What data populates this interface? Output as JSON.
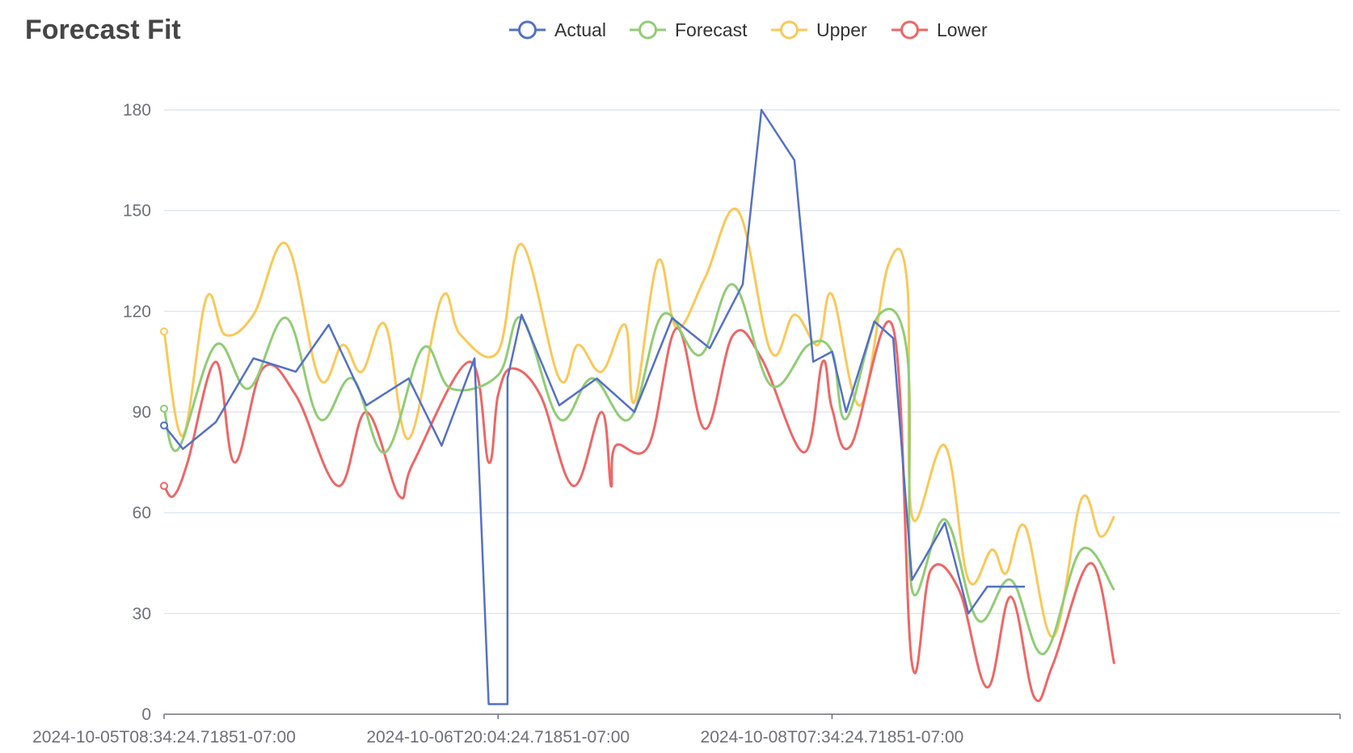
{
  "title": "Forecast Fit",
  "chart_data": {
    "type": "line",
    "title": "Forecast Fit",
    "xlabel": "",
    "ylabel": "",
    "x_start": "2024-10-05T08:34:24.71851-07:00",
    "x_end": "2024-10-10T13:34:24.71851-07:00",
    "x_ticks": [
      "2024-10-05T08:34:24.71851-07:00",
      "2024-10-06T20:04:24.71851-07:00",
      "2024-10-08T07:34:24.71851-07:00"
    ],
    "y_ticks": [
      "0",
      "30",
      "60",
      "90",
      "120",
      "150",
      "180"
    ],
    "ylim": [
      0,
      180
    ],
    "grid": true,
    "legend_position": "top-center",
    "series": [
      {
        "name": "Actual",
        "color": "#5470c6",
        "points": [
          [
            "2024-10-05T08:34",
            86
          ],
          [
            "2024-10-05T10:34",
            79
          ],
          [
            "2024-10-05T14:04",
            87
          ],
          [
            "2024-10-05T18:04",
            106
          ],
          [
            "2024-10-05T22:34",
            102
          ],
          [
            "2024-10-06T02:04",
            116
          ],
          [
            "2024-10-06T06:04",
            92
          ],
          [
            "2024-10-06T10:34",
            100
          ],
          [
            "2024-10-06T14:04",
            80
          ],
          [
            "2024-10-06T17:34",
            106
          ],
          [
            "2024-10-06T19:04",
            3
          ],
          [
            "2024-10-06T20:04",
            3
          ],
          [
            "2024-10-06T21:04",
            3
          ],
          [
            "2024-10-06T21:04",
            100
          ],
          [
            "2024-10-06T22:34",
            119
          ],
          [
            "2024-10-07T02:34",
            92
          ],
          [
            "2024-10-07T06:34",
            100
          ],
          [
            "2024-10-07T10:34",
            90
          ],
          [
            "2024-10-07T14:34",
            118
          ],
          [
            "2024-10-07T18:34",
            109
          ],
          [
            "2024-10-07T22:04",
            128
          ],
          [
            "2024-10-08T00:04",
            180
          ],
          [
            "2024-10-08T03:34",
            165
          ],
          [
            "2024-10-08T04:04",
            150
          ],
          [
            "2024-10-08T05:34",
            105
          ],
          [
            "2024-10-08T07:34",
            108
          ],
          [
            "2024-10-08T09:04",
            90
          ],
          [
            "2024-10-08T12:04",
            117
          ],
          [
            "2024-10-08T14:04",
            112
          ],
          [
            "2024-10-08T16:04",
            40
          ],
          [
            "2024-10-08T19:34",
            57
          ],
          [
            "2024-10-08T22:04",
            30
          ],
          [
            "2024-10-09T00:04",
            38
          ],
          [
            "2024-10-09T04:04",
            38
          ]
        ]
      },
      {
        "name": "Forecast",
        "color": "#91cc75",
        "points": [
          [
            "2024-10-05T08:34",
            91
          ],
          [
            "2024-10-05T10:04",
            79
          ],
          [
            "2024-10-05T14:04",
            110
          ],
          [
            "2024-10-05T17:34",
            97
          ],
          [
            "2024-10-05T21:34",
            118
          ],
          [
            "2024-10-06T01:04",
            88
          ],
          [
            "2024-10-06T04:34",
            100
          ],
          [
            "2024-10-06T08:04",
            78
          ],
          [
            "2024-10-06T12:04",
            109
          ],
          [
            "2024-10-06T15:04",
            97
          ],
          [
            "2024-10-06T20:04",
            101
          ],
          [
            "2024-10-06T22:34",
            118
          ],
          [
            "2024-10-07T02:34",
            88
          ],
          [
            "2024-10-07T06:04",
            100
          ],
          [
            "2024-10-07T10:04",
            88
          ],
          [
            "2024-10-07T13:34",
            119
          ],
          [
            "2024-10-07T17:34",
            107
          ],
          [
            "2024-10-07T21:04",
            128
          ],
          [
            "2024-10-08T01:04",
            98
          ],
          [
            "2024-10-08T05:04",
            110
          ],
          [
            "2024-10-08T07:34",
            108
          ],
          [
            "2024-10-08T09:04",
            88
          ],
          [
            "2024-10-08T12:34",
            119
          ],
          [
            "2024-10-08T15:34",
            107
          ],
          [
            "2024-10-08T16:04",
            37
          ],
          [
            "2024-10-08T19:34",
            58
          ],
          [
            "2024-10-08T23:04",
            28
          ],
          [
            "2024-10-09T02:34",
            40
          ],
          [
            "2024-10-09T06:04",
            18
          ],
          [
            "2024-10-09T10:04",
            49
          ],
          [
            "2024-10-09T13:34",
            37
          ]
        ]
      },
      {
        "name": "Upper",
        "color": "#fac858",
        "points": [
          [
            "2024-10-05T08:34",
            114
          ],
          [
            "2024-10-05T10:34",
            83
          ],
          [
            "2024-10-05T13:04",
            124
          ],
          [
            "2024-10-05T15:04",
            113
          ],
          [
            "2024-10-05T18:04",
            119
          ],
          [
            "2024-10-05T21:34",
            140
          ],
          [
            "2024-10-06T01:04",
            100
          ],
          [
            "2024-10-06T03:34",
            110
          ],
          [
            "2024-10-06T05:34",
            102
          ],
          [
            "2024-10-06T08:04",
            116
          ],
          [
            "2024-10-06T10:34",
            82
          ],
          [
            "2024-10-06T14:04",
            124
          ],
          [
            "2024-10-06T16:04",
            113
          ],
          [
            "2024-10-06T20:04",
            108
          ],
          [
            "2024-10-06T22:34",
            140
          ],
          [
            "2024-10-07T02:34",
            100
          ],
          [
            "2024-10-07T04:34",
            110
          ],
          [
            "2024-10-07T07:04",
            102
          ],
          [
            "2024-10-07T09:34",
            116
          ],
          [
            "2024-10-07T10:34",
            93
          ],
          [
            "2024-10-07T13:04",
            135
          ],
          [
            "2024-10-07T15:04",
            115
          ],
          [
            "2024-10-07T18:04",
            130
          ],
          [
            "2024-10-07T21:34",
            150
          ],
          [
            "2024-10-08T01:04",
            108
          ],
          [
            "2024-10-08T03:34",
            119
          ],
          [
            "2024-10-08T06:04",
            110
          ],
          [
            "2024-10-08T07:34",
            125
          ],
          [
            "2024-10-08T10:34",
            92
          ],
          [
            "2024-10-08T13:34",
            134
          ],
          [
            "2024-10-08T15:34",
            128
          ],
          [
            "2024-10-08T16:04",
            59
          ],
          [
            "2024-10-08T19:34",
            80
          ],
          [
            "2024-10-08T22:04",
            40
          ],
          [
            "2024-10-09T00:34",
            49
          ],
          [
            "2024-10-09T02:04",
            42
          ],
          [
            "2024-10-09T04:04",
            56
          ],
          [
            "2024-10-09T07:04",
            23
          ],
          [
            "2024-10-09T10:04",
            64
          ],
          [
            "2024-10-09T12:04",
            53
          ],
          [
            "2024-10-09T13:34",
            59
          ]
        ]
      },
      {
        "name": "Lower",
        "color": "#ee6666",
        "points": [
          [
            "2024-10-05T08:34",
            68
          ],
          [
            "2024-10-05T09:34",
            65
          ],
          [
            "2024-10-05T11:04",
            75
          ],
          [
            "2024-10-05T14:04",
            105
          ],
          [
            "2024-10-05T16:04",
            75
          ],
          [
            "2024-10-05T19:04",
            103
          ],
          [
            "2024-10-05T22:34",
            95
          ],
          [
            "2024-10-06T03:04",
            68
          ],
          [
            "2024-10-06T06:04",
            90
          ],
          [
            "2024-10-06T09:34",
            65
          ],
          [
            "2024-10-06T11:04",
            75
          ],
          [
            "2024-10-06T17:04",
            105
          ],
          [
            "2024-10-06T19:04",
            75
          ],
          [
            "2024-10-06T20:04",
            95
          ],
          [
            "2024-10-06T21:34",
            103
          ],
          [
            "2024-10-07T00:34",
            95
          ],
          [
            "2024-10-07T04:04",
            68
          ],
          [
            "2024-10-07T07:04",
            90
          ],
          [
            "2024-10-07T08:04",
            68
          ],
          [
            "2024-10-07T08:34",
            80
          ],
          [
            "2024-10-07T12:04",
            80
          ],
          [
            "2024-10-07T15:04",
            115
          ],
          [
            "2024-10-07T18:04",
            85
          ],
          [
            "2024-10-07T21:04",
            113
          ],
          [
            "2024-10-08T00:04",
            106
          ],
          [
            "2024-10-08T04:34",
            78
          ],
          [
            "2024-10-08T06:34",
            105
          ],
          [
            "2024-10-08T07:34",
            91
          ],
          [
            "2024-10-08T09:34",
            80
          ],
          [
            "2024-10-08T14:04",
            115
          ],
          [
            "2024-10-08T16:04",
            15
          ],
          [
            "2024-10-08T18:04",
            43
          ],
          [
            "2024-10-08T21:04",
            37
          ],
          [
            "2024-10-09T00:04",
            8
          ],
          [
            "2024-10-09T02:34",
            35
          ],
          [
            "2024-10-09T05:04",
            5
          ],
          [
            "2024-10-09T07:04",
            15
          ],
          [
            "2024-10-09T11:04",
            45
          ],
          [
            "2024-10-09T13:34",
            15
          ]
        ]
      }
    ]
  }
}
